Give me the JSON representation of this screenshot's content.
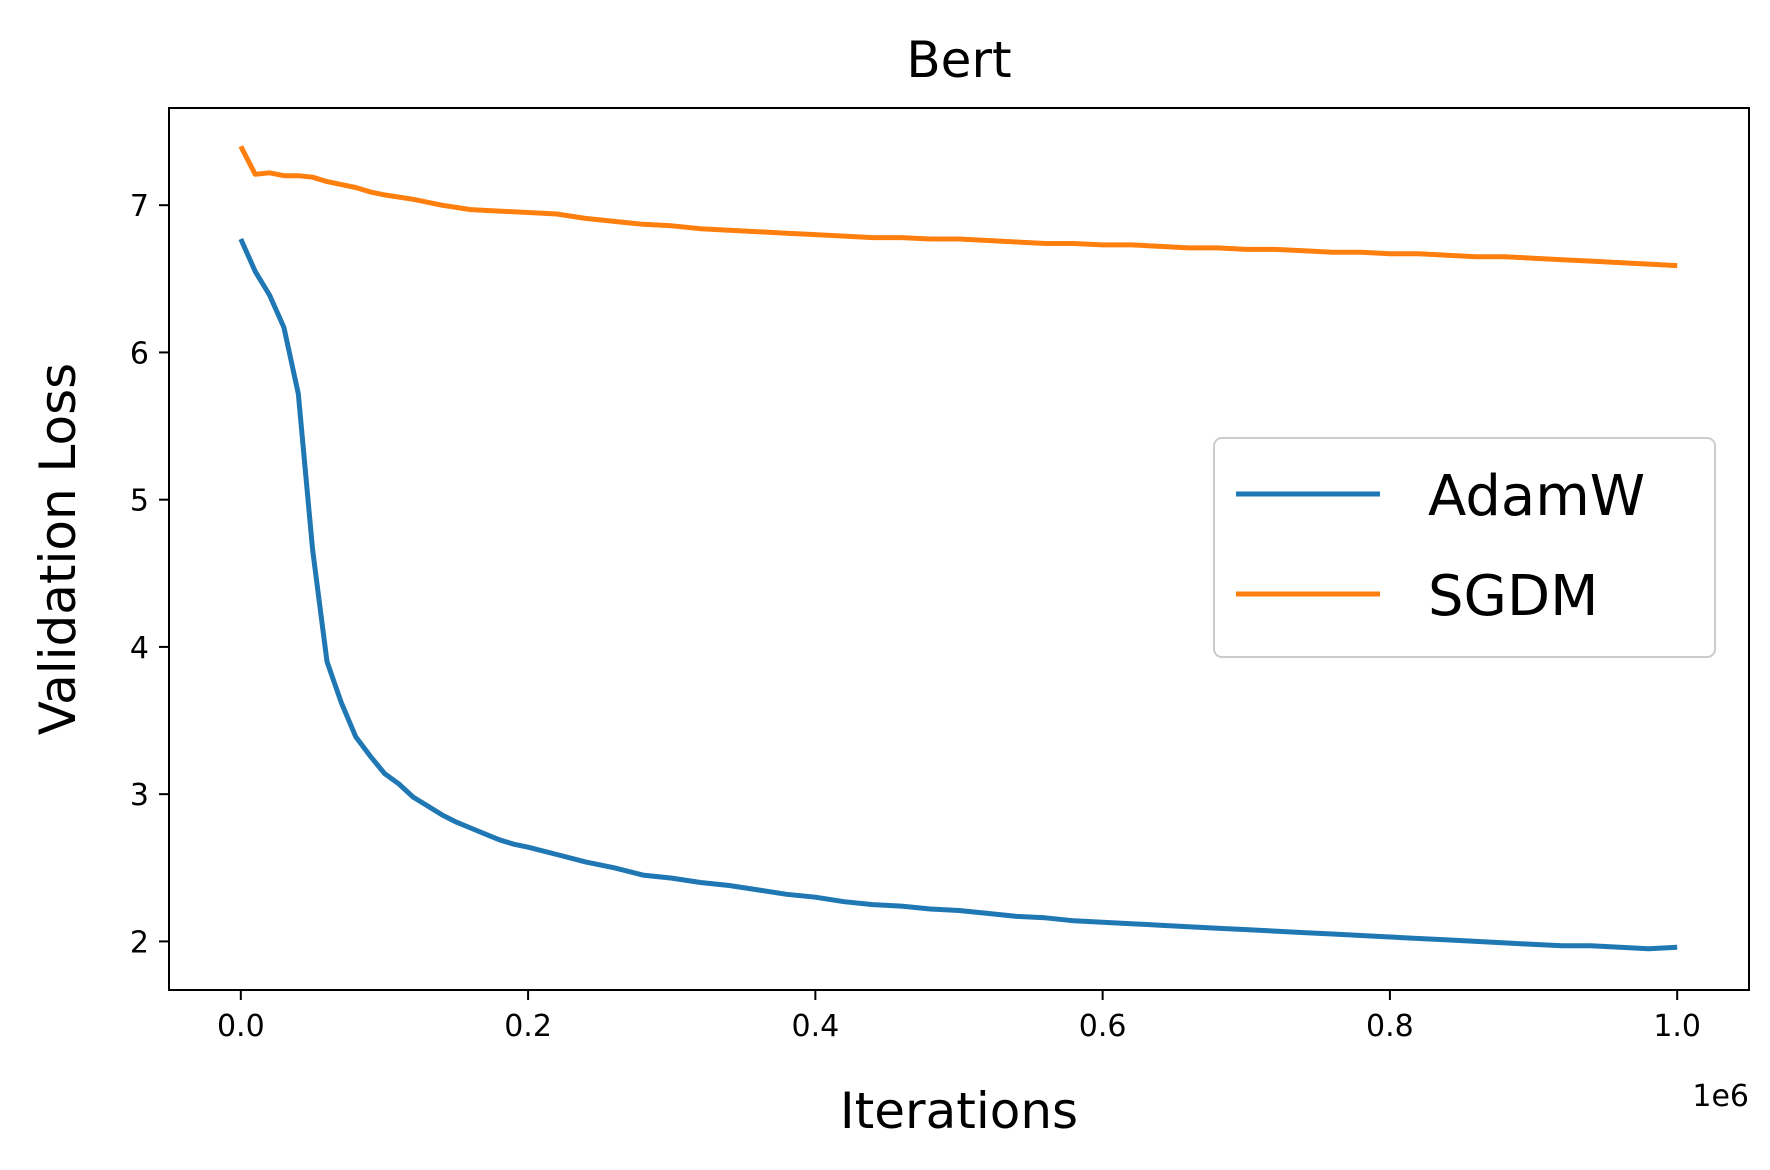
{
  "chart_data": {
    "type": "line",
    "title": "Bert",
    "xlabel": "Iterations",
    "ylabel": "Validation Loss",
    "x_offset_label": "1e6",
    "xlim": [
      -0.05,
      1.05
    ],
    "ylim": [
      1.67,
      7.66
    ],
    "x_ticks": [
      0.0,
      0.2,
      0.4,
      0.6,
      0.8,
      1.0
    ],
    "x_tick_labels": [
      "0.0",
      "0.2",
      "0.4",
      "0.6",
      "0.8",
      "1.0"
    ],
    "y_ticks": [
      2,
      3,
      4,
      5,
      6,
      7
    ],
    "y_tick_labels": [
      "2",
      "3",
      "4",
      "5",
      "6",
      "7"
    ],
    "grid": false,
    "legend_position": "center-right",
    "series": [
      {
        "name": "AdamW",
        "color": "#1f77b4",
        "x": [
          0.0,
          0.01,
          0.02,
          0.03,
          0.04,
          0.05,
          0.06,
          0.07,
          0.08,
          0.09,
          0.1,
          0.11,
          0.12,
          0.13,
          0.14,
          0.15,
          0.16,
          0.17,
          0.18,
          0.19,
          0.2,
          0.22,
          0.24,
          0.26,
          0.28,
          0.3,
          0.32,
          0.34,
          0.36,
          0.38,
          0.4,
          0.42,
          0.44,
          0.46,
          0.48,
          0.5,
          0.52,
          0.54,
          0.56,
          0.58,
          0.6,
          0.62,
          0.64,
          0.66,
          0.68,
          0.7,
          0.72,
          0.74,
          0.76,
          0.78,
          0.8,
          0.82,
          0.84,
          0.86,
          0.88,
          0.9,
          0.92,
          0.94,
          0.96,
          0.98,
          1.0
        ],
        "y": [
          6.77,
          6.55,
          6.39,
          6.17,
          5.72,
          4.66,
          3.9,
          3.62,
          3.39,
          3.26,
          3.14,
          3.07,
          2.98,
          2.92,
          2.86,
          2.81,
          2.77,
          2.73,
          2.69,
          2.66,
          2.64,
          2.59,
          2.54,
          2.5,
          2.45,
          2.43,
          2.4,
          2.38,
          2.35,
          2.32,
          2.3,
          2.27,
          2.25,
          2.24,
          2.22,
          2.21,
          2.19,
          2.17,
          2.16,
          2.14,
          2.13,
          2.12,
          2.11,
          2.1,
          2.09,
          2.08,
          2.07,
          2.06,
          2.05,
          2.04,
          2.03,
          2.02,
          2.01,
          2.0,
          1.99,
          1.98,
          1.97,
          1.97,
          1.96,
          1.95,
          1.96
        ]
      },
      {
        "name": "SGDM",
        "color": "#ff7f0e",
        "x": [
          0.0,
          0.01,
          0.02,
          0.03,
          0.04,
          0.05,
          0.06,
          0.07,
          0.08,
          0.09,
          0.1,
          0.12,
          0.14,
          0.16,
          0.18,
          0.2,
          0.22,
          0.24,
          0.26,
          0.28,
          0.3,
          0.32,
          0.34,
          0.36,
          0.38,
          0.4,
          0.42,
          0.44,
          0.46,
          0.48,
          0.5,
          0.52,
          0.54,
          0.56,
          0.58,
          0.6,
          0.62,
          0.64,
          0.66,
          0.68,
          0.7,
          0.72,
          0.74,
          0.76,
          0.78,
          0.8,
          0.82,
          0.84,
          0.86,
          0.88,
          0.9,
          0.92,
          0.94,
          0.96,
          0.98,
          1.0
        ],
        "y": [
          7.4,
          7.21,
          7.22,
          7.2,
          7.2,
          7.19,
          7.16,
          7.14,
          7.12,
          7.09,
          7.07,
          7.04,
          7.0,
          6.97,
          6.96,
          6.95,
          6.94,
          6.91,
          6.89,
          6.87,
          6.86,
          6.84,
          6.83,
          6.82,
          6.81,
          6.8,
          6.79,
          6.78,
          6.78,
          6.77,
          6.77,
          6.76,
          6.75,
          6.74,
          6.74,
          6.73,
          6.73,
          6.72,
          6.71,
          6.71,
          6.7,
          6.7,
          6.69,
          6.68,
          6.68,
          6.67,
          6.67,
          6.66,
          6.65,
          6.65,
          6.64,
          6.63,
          6.62,
          6.61,
          6.6,
          6.59
        ]
      }
    ]
  }
}
